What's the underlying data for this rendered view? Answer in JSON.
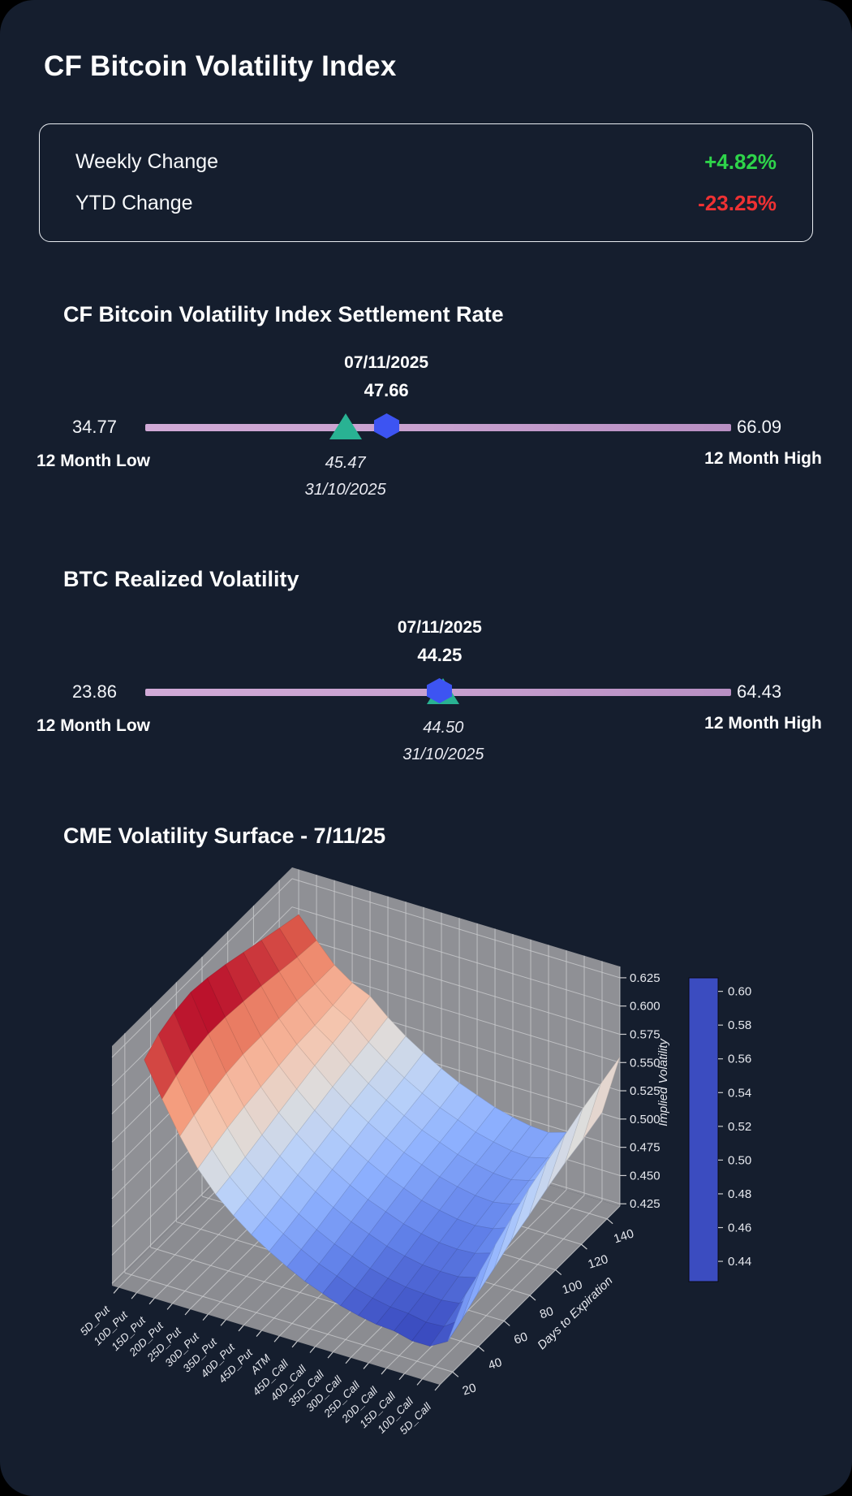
{
  "app": {
    "title": "CF Bitcoin Volatility Index"
  },
  "stats": {
    "rows": [
      {
        "label": "Weekly Change",
        "value": "+4.82%",
        "color": "#2ed44a"
      },
      {
        "label": "YTD Change",
        "value": "-23.25%",
        "color": "#ef3133"
      }
    ]
  },
  "colors": {
    "background": "#151e2e",
    "bar_left": "#d1aad7",
    "bar_right": "#b88fc3",
    "previous_marker": "#29b293",
    "current_marker": "#3d54f2",
    "wall": "#8f9095",
    "floor": "#8b8c91",
    "grid": "#c9cacd",
    "tick_text": "#e6e8ee"
  },
  "chart_data": [
    {
      "type": "range-indicator",
      "title": "CF Bitcoin Volatility Index Settlement Rate",
      "min": "34.77",
      "max": "66.09",
      "min_label": "12 Month Low",
      "max_label": "12 Month High",
      "current": "47.66",
      "current_date": "07/11/2025",
      "previous": "45.47",
      "previous_date": "31/10/2025"
    },
    {
      "type": "range-indicator",
      "title": "BTC Realized Volatility",
      "min": "23.86",
      "max": "64.43",
      "min_label": "12 Month Low",
      "max_label": "12 Month High",
      "current": "44.25",
      "current_date": "07/11/2025",
      "previous": "44.50",
      "previous_date": "31/10/2025"
    },
    {
      "type": "surface",
      "title": "CME Volatility Surface - 7/11/25",
      "ylabel": "Days to Expiration",
      "zlabel": "Implied Volatility",
      "colormap": "coolwarm",
      "x_categories": [
        "5D_Put",
        "10D_Put",
        "15D_Put",
        "20D_Put",
        "25D_Put",
        "30D_Put",
        "35D_Put",
        "40D_Put",
        "45D_Put",
        "ATM",
        "45D_Call",
        "40D_Call",
        "35D_Call",
        "30D_Call",
        "25D_Call",
        "20D_Call",
        "15D_Call",
        "10D_Call",
        "5D_Call"
      ],
      "y_values": [
        30,
        41,
        53,
        66,
        79,
        93,
        107,
        121,
        135,
        150
      ],
      "ylim": [
        10,
        150
      ],
      "y_ticks": [
        20,
        40,
        60,
        80,
        100,
        120,
        140
      ],
      "zlim": [
        0.423,
        0.635
      ],
      "z_ticks": [
        0.425,
        0.45,
        0.475,
        0.5,
        0.525,
        0.55,
        0.575,
        0.6,
        0.625
      ],
      "color_range": [
        0.428,
        0.608
      ],
      "colorbar_ticks": [
        0.44,
        0.46,
        0.48,
        0.5,
        0.52,
        0.54,
        0.56,
        0.58,
        0.6
      ],
      "z_grid": [
        [
          0.602,
          0.572,
          0.544,
          0.52,
          0.502,
          0.488,
          0.476,
          0.466,
          0.457,
          0.449,
          0.443,
          0.437,
          0.433,
          0.43,
          0.429,
          0.425,
          0.425,
          0.434,
          0.48
        ],
        [
          0.612,
          0.58,
          0.55,
          0.525,
          0.505,
          0.491,
          0.479,
          0.469,
          0.46,
          0.452,
          0.446,
          0.44,
          0.436,
          0.433,
          0.432,
          0.429,
          0.43,
          0.441,
          0.488
        ],
        [
          0.618,
          0.586,
          0.555,
          0.53,
          0.509,
          0.495,
          0.483,
          0.473,
          0.464,
          0.456,
          0.45,
          0.444,
          0.44,
          0.437,
          0.436,
          0.435,
          0.437,
          0.45,
          0.498
        ],
        [
          0.621,
          0.589,
          0.559,
          0.534,
          0.514,
          0.5,
          0.488,
          0.478,
          0.469,
          0.461,
          0.455,
          0.449,
          0.445,
          0.442,
          0.441,
          0.441,
          0.445,
          0.458,
          0.508
        ],
        [
          0.619,
          0.589,
          0.561,
          0.537,
          0.519,
          0.505,
          0.493,
          0.483,
          0.474,
          0.466,
          0.46,
          0.454,
          0.45,
          0.447,
          0.446,
          0.447,
          0.452,
          0.467,
          0.518
        ],
        [
          0.615,
          0.587,
          0.561,
          0.54,
          0.524,
          0.51,
          0.498,
          0.488,
          0.479,
          0.471,
          0.465,
          0.459,
          0.455,
          0.452,
          0.451,
          0.453,
          0.459,
          0.474,
          0.526
        ],
        [
          0.61,
          0.585,
          0.561,
          0.543,
          0.529,
          0.515,
          0.503,
          0.493,
          0.484,
          0.476,
          0.47,
          0.464,
          0.46,
          0.457,
          0.456,
          0.459,
          0.465,
          0.482,
          0.534
        ],
        [
          0.605,
          0.582,
          0.561,
          0.544,
          0.533,
          0.519,
          0.507,
          0.497,
          0.488,
          0.48,
          0.474,
          0.468,
          0.464,
          0.461,
          0.46,
          0.464,
          0.471,
          0.489,
          0.542
        ],
        [
          0.6,
          0.579,
          0.56,
          0.546,
          0.537,
          0.523,
          0.511,
          0.501,
          0.492,
          0.484,
          0.478,
          0.472,
          0.468,
          0.465,
          0.464,
          0.468,
          0.476,
          0.494,
          0.548
        ],
        [
          0.595,
          0.577,
          0.56,
          0.549,
          0.542,
          0.528,
          0.516,
          0.506,
          0.497,
          0.489,
          0.483,
          0.477,
          0.473,
          0.47,
          0.469,
          0.474,
          0.482,
          0.501,
          0.555
        ]
      ]
    }
  ]
}
